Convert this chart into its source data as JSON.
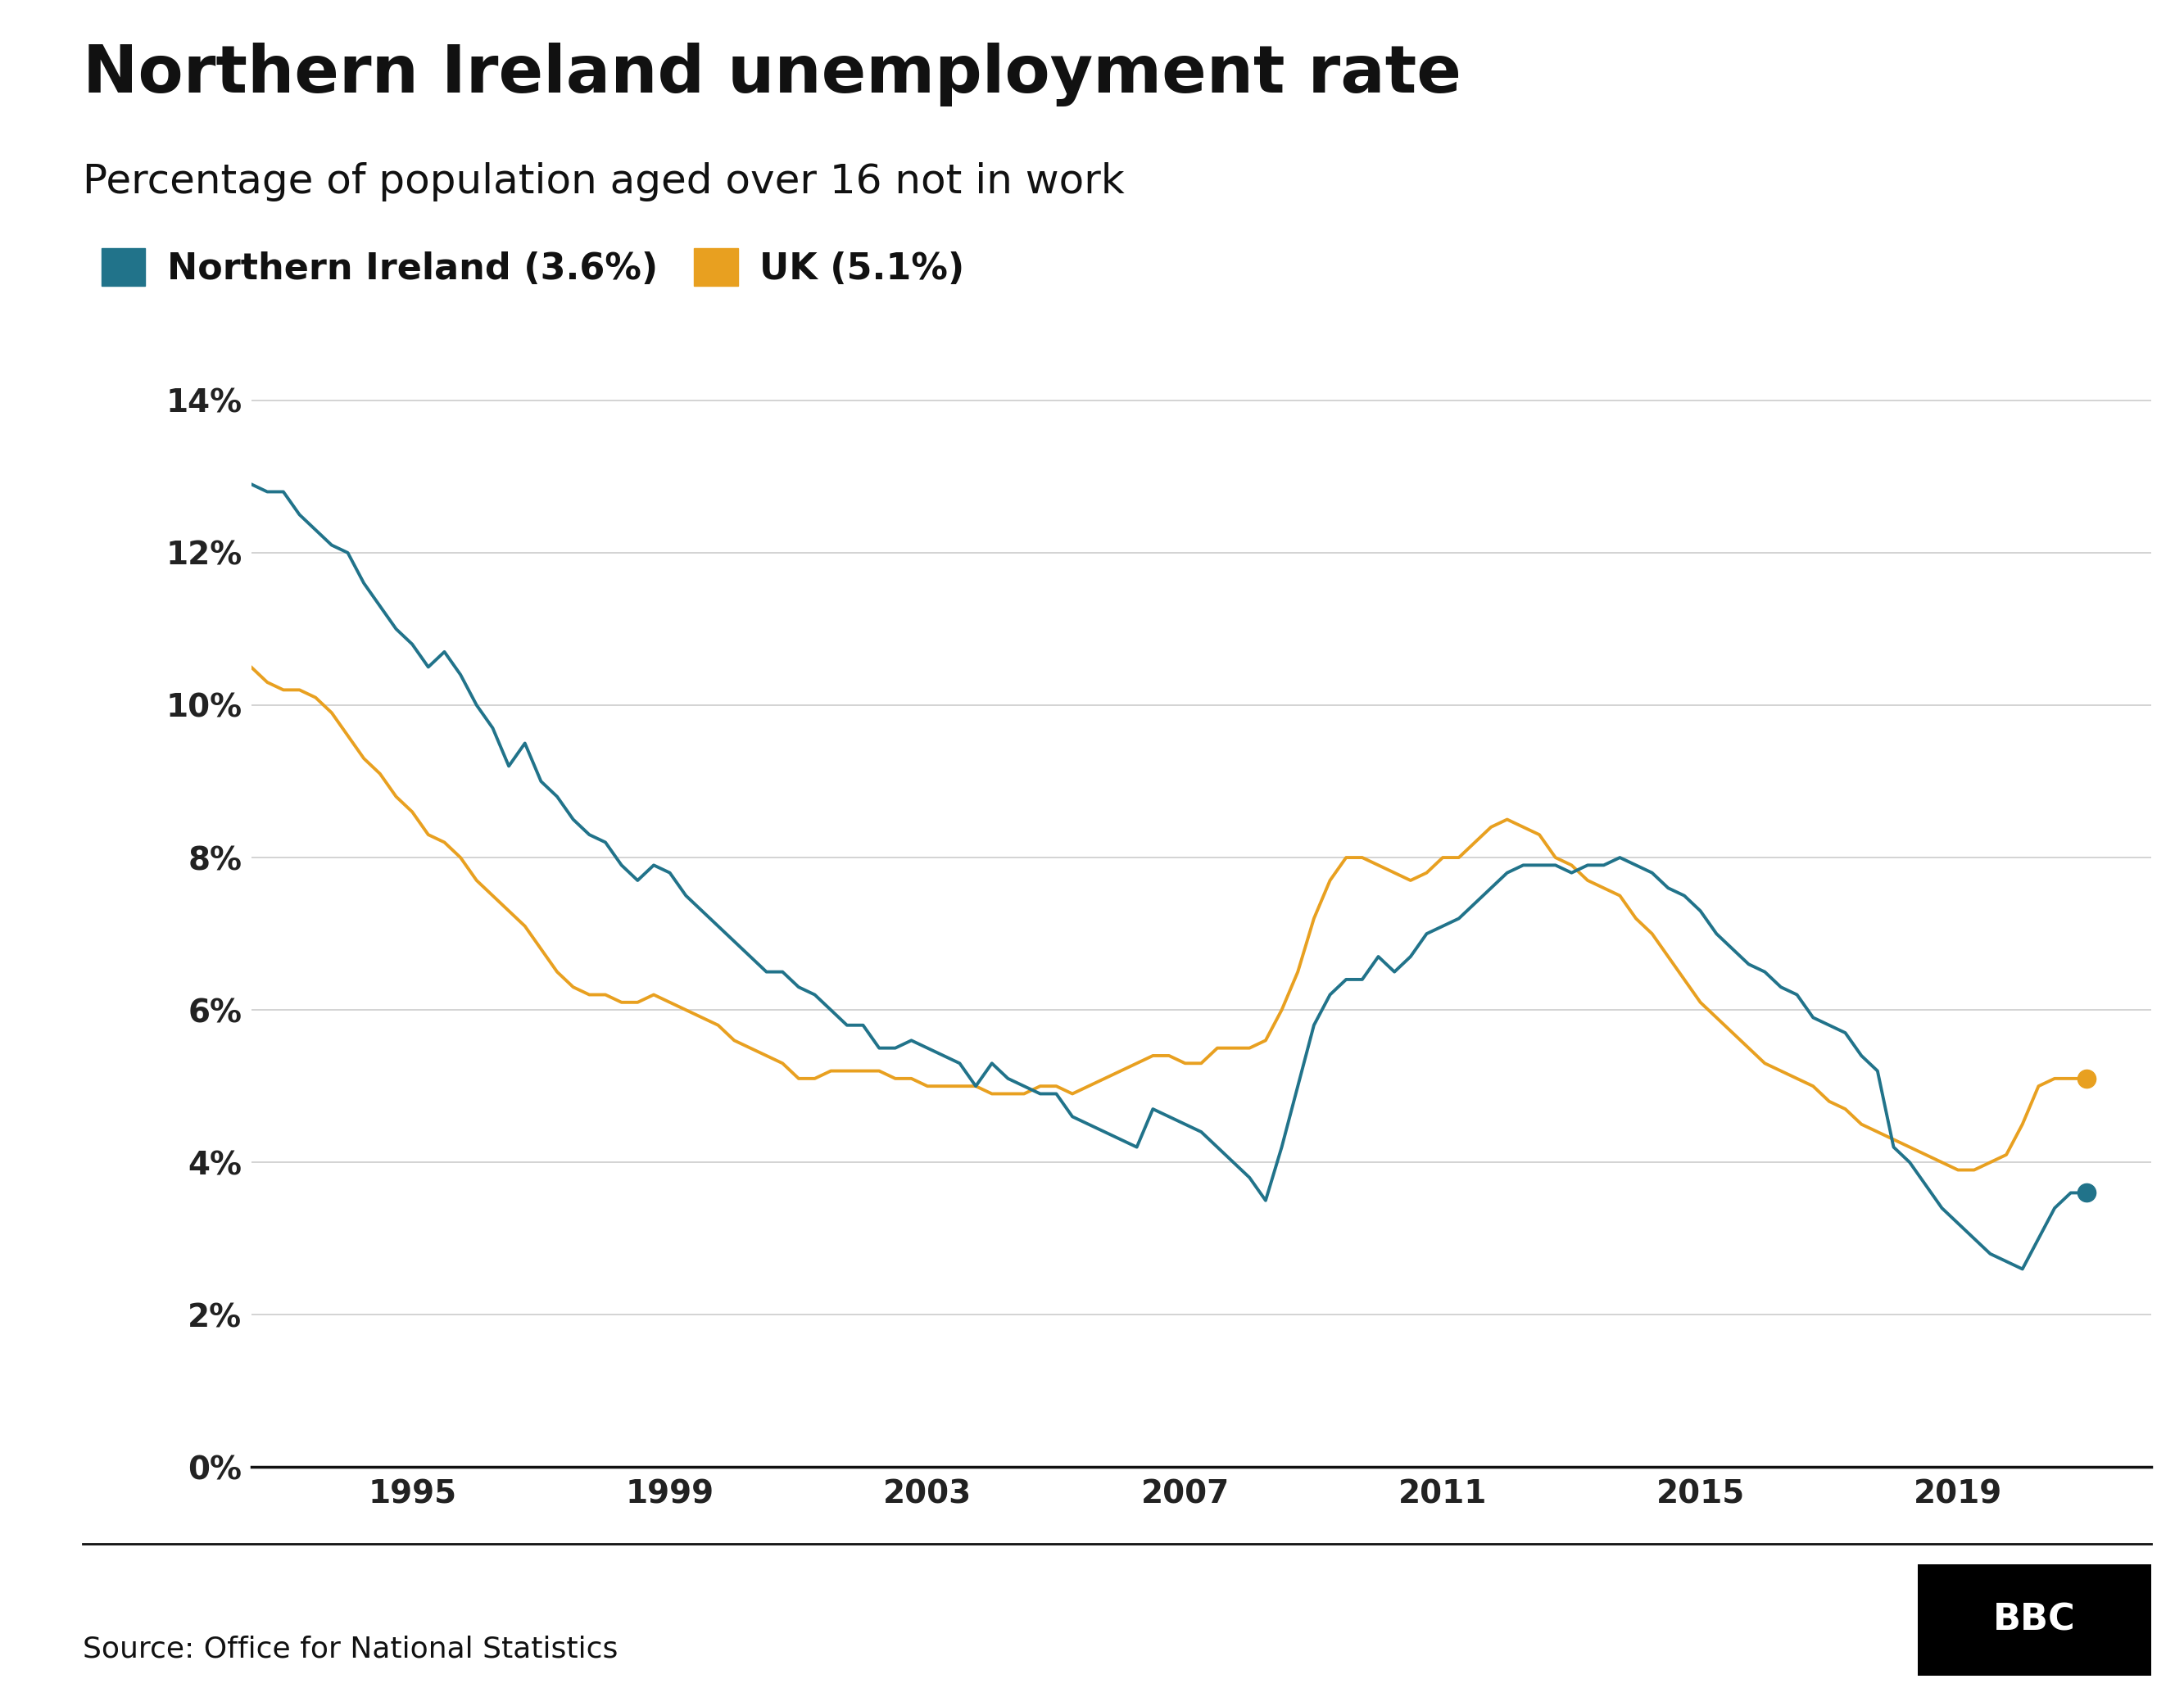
{
  "title": "Northern Ireland unemployment rate",
  "subtitle": "Percentage of population aged over 16 not in work",
  "source": "Source: Office for National Statistics",
  "ni_label": "Northern Ireland (3.6%)",
  "uk_label": "UK (5.1%)",
  "ni_color": "#21738a",
  "uk_color": "#e8a020",
  "background_color": "#ffffff",
  "yticks": [
    0,
    2,
    4,
    6,
    8,
    10,
    12,
    14
  ],
  "xticks": [
    1995,
    1999,
    2003,
    2007,
    2011,
    2015,
    2019
  ],
  "ylim": [
    0,
    15
  ],
  "xlim": [
    1992.5,
    2022
  ],
  "ni_data": [
    [
      1992.25,
      13.0
    ],
    [
      1992.5,
      12.9
    ],
    [
      1992.75,
      12.8
    ],
    [
      1993.0,
      12.8
    ],
    [
      1993.25,
      12.5
    ],
    [
      1993.5,
      12.3
    ],
    [
      1993.75,
      12.1
    ],
    [
      1994.0,
      12.0
    ],
    [
      1994.25,
      11.6
    ],
    [
      1994.5,
      11.3
    ],
    [
      1994.75,
      11.0
    ],
    [
      1995.0,
      10.8
    ],
    [
      1995.25,
      10.5
    ],
    [
      1995.5,
      10.7
    ],
    [
      1995.75,
      10.4
    ],
    [
      1996.0,
      10.0
    ],
    [
      1996.25,
      9.7
    ],
    [
      1996.5,
      9.2
    ],
    [
      1996.75,
      9.5
    ],
    [
      1997.0,
      9.0
    ],
    [
      1997.25,
      8.8
    ],
    [
      1997.5,
      8.5
    ],
    [
      1997.75,
      8.3
    ],
    [
      1998.0,
      8.2
    ],
    [
      1998.25,
      7.9
    ],
    [
      1998.5,
      7.7
    ],
    [
      1998.75,
      7.9
    ],
    [
      1999.0,
      7.8
    ],
    [
      1999.25,
      7.5
    ],
    [
      1999.5,
      7.3
    ],
    [
      1999.75,
      7.1
    ],
    [
      2000.0,
      6.9
    ],
    [
      2000.25,
      6.7
    ],
    [
      2000.5,
      6.5
    ],
    [
      2000.75,
      6.5
    ],
    [
      2001.0,
      6.3
    ],
    [
      2001.25,
      6.2
    ],
    [
      2001.5,
      6.0
    ],
    [
      2001.75,
      5.8
    ],
    [
      2002.0,
      5.8
    ],
    [
      2002.25,
      5.5
    ],
    [
      2002.5,
      5.5
    ],
    [
      2002.75,
      5.6
    ],
    [
      2003.0,
      5.5
    ],
    [
      2003.25,
      5.4
    ],
    [
      2003.5,
      5.3
    ],
    [
      2003.75,
      5.0
    ],
    [
      2004.0,
      5.3
    ],
    [
      2004.25,
      5.1
    ],
    [
      2004.5,
      5.0
    ],
    [
      2004.75,
      4.9
    ],
    [
      2005.0,
      4.9
    ],
    [
      2005.25,
      4.6
    ],
    [
      2005.5,
      4.5
    ],
    [
      2005.75,
      4.4
    ],
    [
      2006.0,
      4.3
    ],
    [
      2006.25,
      4.2
    ],
    [
      2006.5,
      4.7
    ],
    [
      2006.75,
      4.6
    ],
    [
      2007.0,
      4.5
    ],
    [
      2007.25,
      4.4
    ],
    [
      2007.5,
      4.2
    ],
    [
      2007.75,
      4.0
    ],
    [
      2008.0,
      3.8
    ],
    [
      2008.25,
      3.5
    ],
    [
      2008.5,
      4.2
    ],
    [
      2008.75,
      5.0
    ],
    [
      2009.0,
      5.8
    ],
    [
      2009.25,
      6.2
    ],
    [
      2009.5,
      6.4
    ],
    [
      2009.75,
      6.4
    ],
    [
      2010.0,
      6.7
    ],
    [
      2010.25,
      6.5
    ],
    [
      2010.5,
      6.7
    ],
    [
      2010.75,
      7.0
    ],
    [
      2011.0,
      7.1
    ],
    [
      2011.25,
      7.2
    ],
    [
      2011.5,
      7.4
    ],
    [
      2011.75,
      7.6
    ],
    [
      2012.0,
      7.8
    ],
    [
      2012.25,
      7.9
    ],
    [
      2012.5,
      7.9
    ],
    [
      2012.75,
      7.9
    ],
    [
      2013.0,
      7.8
    ],
    [
      2013.25,
      7.9
    ],
    [
      2013.5,
      7.9
    ],
    [
      2013.75,
      8.0
    ],
    [
      2014.0,
      7.9
    ],
    [
      2014.25,
      7.8
    ],
    [
      2014.5,
      7.6
    ],
    [
      2014.75,
      7.5
    ],
    [
      2015.0,
      7.3
    ],
    [
      2015.25,
      7.0
    ],
    [
      2015.5,
      6.8
    ],
    [
      2015.75,
      6.6
    ],
    [
      2016.0,
      6.5
    ],
    [
      2016.25,
      6.3
    ],
    [
      2016.5,
      6.2
    ],
    [
      2016.75,
      5.9
    ],
    [
      2017.0,
      5.8
    ],
    [
      2017.25,
      5.7
    ],
    [
      2017.5,
      5.4
    ],
    [
      2017.75,
      5.2
    ],
    [
      2018.0,
      4.2
    ],
    [
      2018.25,
      4.0
    ],
    [
      2018.5,
      3.7
    ],
    [
      2018.75,
      3.4
    ],
    [
      2019.0,
      3.2
    ],
    [
      2019.25,
      3.0
    ],
    [
      2019.5,
      2.8
    ],
    [
      2019.75,
      2.7
    ],
    [
      2020.0,
      2.6
    ],
    [
      2020.25,
      3.0
    ],
    [
      2020.5,
      3.4
    ],
    [
      2020.75,
      3.6
    ],
    [
      2021.0,
      3.6
    ]
  ],
  "uk_data": [
    [
      1992.25,
      10.7
    ],
    [
      1992.5,
      10.5
    ],
    [
      1992.75,
      10.3
    ],
    [
      1993.0,
      10.2
    ],
    [
      1993.25,
      10.2
    ],
    [
      1993.5,
      10.1
    ],
    [
      1993.75,
      9.9
    ],
    [
      1994.0,
      9.6
    ],
    [
      1994.25,
      9.3
    ],
    [
      1994.5,
      9.1
    ],
    [
      1994.75,
      8.8
    ],
    [
      1995.0,
      8.6
    ],
    [
      1995.25,
      8.3
    ],
    [
      1995.5,
      8.2
    ],
    [
      1995.75,
      8.0
    ],
    [
      1996.0,
      7.7
    ],
    [
      1996.25,
      7.5
    ],
    [
      1996.5,
      7.3
    ],
    [
      1996.75,
      7.1
    ],
    [
      1997.0,
      6.8
    ],
    [
      1997.25,
      6.5
    ],
    [
      1997.5,
      6.3
    ],
    [
      1997.75,
      6.2
    ],
    [
      1998.0,
      6.2
    ],
    [
      1998.25,
      6.1
    ],
    [
      1998.5,
      6.1
    ],
    [
      1998.75,
      6.2
    ],
    [
      1999.0,
      6.1
    ],
    [
      1999.25,
      6.0
    ],
    [
      1999.5,
      5.9
    ],
    [
      1999.75,
      5.8
    ],
    [
      2000.0,
      5.6
    ],
    [
      2000.25,
      5.5
    ],
    [
      2000.5,
      5.4
    ],
    [
      2000.75,
      5.3
    ],
    [
      2001.0,
      5.1
    ],
    [
      2001.25,
      5.1
    ],
    [
      2001.5,
      5.2
    ],
    [
      2001.75,
      5.2
    ],
    [
      2002.0,
      5.2
    ],
    [
      2002.25,
      5.2
    ],
    [
      2002.5,
      5.1
    ],
    [
      2002.75,
      5.1
    ],
    [
      2003.0,
      5.0
    ],
    [
      2003.25,
      5.0
    ],
    [
      2003.5,
      5.0
    ],
    [
      2003.75,
      5.0
    ],
    [
      2004.0,
      4.9
    ],
    [
      2004.25,
      4.9
    ],
    [
      2004.5,
      4.9
    ],
    [
      2004.75,
      5.0
    ],
    [
      2005.0,
      5.0
    ],
    [
      2005.25,
      4.9
    ],
    [
      2005.5,
      5.0
    ],
    [
      2005.75,
      5.1
    ],
    [
      2006.0,
      5.2
    ],
    [
      2006.25,
      5.3
    ],
    [
      2006.5,
      5.4
    ],
    [
      2006.75,
      5.4
    ],
    [
      2007.0,
      5.3
    ],
    [
      2007.25,
      5.3
    ],
    [
      2007.5,
      5.5
    ],
    [
      2007.75,
      5.5
    ],
    [
      2008.0,
      5.5
    ],
    [
      2008.25,
      5.6
    ],
    [
      2008.5,
      6.0
    ],
    [
      2008.75,
      6.5
    ],
    [
      2009.0,
      7.2
    ],
    [
      2009.25,
      7.7
    ],
    [
      2009.5,
      8.0
    ],
    [
      2009.75,
      8.0
    ],
    [
      2010.0,
      7.9
    ],
    [
      2010.25,
      7.8
    ],
    [
      2010.5,
      7.7
    ],
    [
      2010.75,
      7.8
    ],
    [
      2011.0,
      8.0
    ],
    [
      2011.25,
      8.0
    ],
    [
      2011.5,
      8.2
    ],
    [
      2011.75,
      8.4
    ],
    [
      2012.0,
      8.5
    ],
    [
      2012.25,
      8.4
    ],
    [
      2012.5,
      8.3
    ],
    [
      2012.75,
      8.0
    ],
    [
      2013.0,
      7.9
    ],
    [
      2013.25,
      7.7
    ],
    [
      2013.5,
      7.6
    ],
    [
      2013.75,
      7.5
    ],
    [
      2014.0,
      7.2
    ],
    [
      2014.25,
      7.0
    ],
    [
      2014.5,
      6.7
    ],
    [
      2014.75,
      6.4
    ],
    [
      2015.0,
      6.1
    ],
    [
      2015.25,
      5.9
    ],
    [
      2015.5,
      5.7
    ],
    [
      2015.75,
      5.5
    ],
    [
      2016.0,
      5.3
    ],
    [
      2016.25,
      5.2
    ],
    [
      2016.5,
      5.1
    ],
    [
      2016.75,
      5.0
    ],
    [
      2017.0,
      4.8
    ],
    [
      2017.25,
      4.7
    ],
    [
      2017.5,
      4.5
    ],
    [
      2017.75,
      4.4
    ],
    [
      2018.0,
      4.3
    ],
    [
      2018.25,
      4.2
    ],
    [
      2018.5,
      4.1
    ],
    [
      2018.75,
      4.0
    ],
    [
      2019.0,
      3.9
    ],
    [
      2019.25,
      3.9
    ],
    [
      2019.5,
      4.0
    ],
    [
      2019.75,
      4.1
    ],
    [
      2020.0,
      4.5
    ],
    [
      2020.25,
      5.0
    ],
    [
      2020.5,
      5.1
    ],
    [
      2020.75,
      5.1
    ],
    [
      2021.0,
      5.1
    ]
  ],
  "ni_endpoint": [
    2021.0,
    3.6
  ],
  "uk_endpoint": [
    2021.0,
    5.1
  ],
  "title_fontsize": 58,
  "subtitle_fontsize": 36,
  "legend_fontsize": 32,
  "tick_fontsize": 28,
  "source_fontsize": 26,
  "bbc_fontsize": 32,
  "linewidth": 2.8,
  "marker_size": 16
}
